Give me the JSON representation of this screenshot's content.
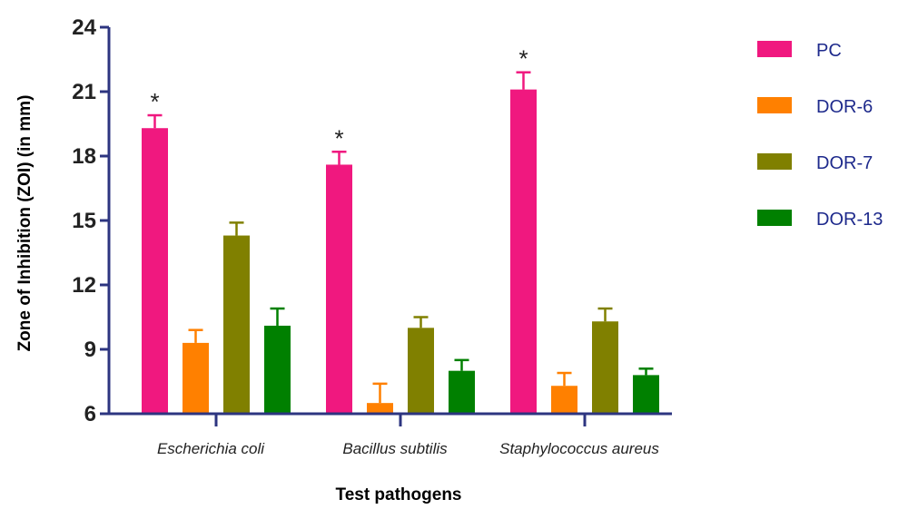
{
  "chart_data": {
    "type": "bar",
    "xlabel": "Test pathogens",
    "ylabel": "Zone of Inhibition (ZOI) (in mm)",
    "ylim": [
      6,
      24
    ],
    "yticks": [
      "6",
      "9",
      "12",
      "15",
      "18",
      "21",
      "24"
    ],
    "categories": [
      "Escherichia coli",
      "Bacillus subtilis",
      "Staphylococcus aureus"
    ],
    "series": [
      {
        "name": "PC",
        "color": "#f0187f",
        "values": [
          19.3,
          17.6,
          21.1
        ],
        "errors": [
          0.6,
          0.6,
          0.8
        ]
      },
      {
        "name": "DOR-6",
        "color": "#ff8000",
        "values": [
          9.3,
          6.5,
          7.3
        ],
        "errors": [
          0.6,
          0.9,
          0.6
        ]
      },
      {
        "name": "DOR-7",
        "color": "#808000",
        "values": [
          14.3,
          10.0,
          10.3
        ],
        "errors": [
          0.6,
          0.5,
          0.6
        ]
      },
      {
        "name": "DOR-13",
        "color": "#008000",
        "values": [
          10.1,
          8.0,
          7.8
        ],
        "errors": [
          0.8,
          0.5,
          0.3
        ]
      }
    ],
    "significance": [
      {
        "category": 0,
        "series": 0,
        "label": "*"
      },
      {
        "category": 1,
        "series": 0,
        "label": "*"
      },
      {
        "category": 2,
        "series": 0,
        "label": "*"
      }
    ],
    "legend_position": "right",
    "grid": false,
    "axis_color": "#2d3580"
  }
}
